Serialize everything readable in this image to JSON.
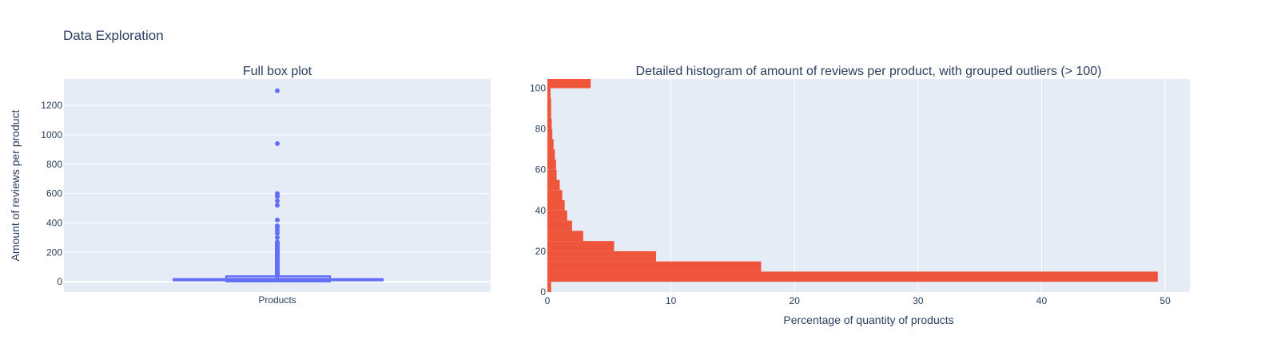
{
  "page": {
    "title": "Data Exploration"
  },
  "colors": {
    "box": "#636efa",
    "hist": "#ef553b",
    "plot_bg": "#e5ecf6",
    "grid": "#ffffff",
    "text": "#2a3f5f"
  },
  "chart_data": [
    {
      "type": "box",
      "title": "Full box plot",
      "xlabel": "",
      "ylabel": "Amount of reviews per product",
      "categories": [
        "Products"
      ],
      "ylim": [
        -70,
        1380
      ],
      "yticks": [
        0,
        200,
        400,
        600,
        800,
        1000,
        1200
      ],
      "grid": true,
      "stats": {
        "min": 1,
        "q1": 3,
        "median": 8,
        "q3": 20,
        "upper_fence": 38
      },
      "outliers": [
        1300,
        940,
        600,
        590,
        580,
        550,
        520,
        420,
        380,
        370,
        350,
        330,
        300,
        270,
        260,
        250,
        240,
        230,
        220,
        210,
        200,
        190,
        180,
        170,
        160,
        150,
        140,
        130,
        120,
        110,
        100,
        95,
        90,
        85,
        80,
        75,
        70,
        65,
        60,
        55,
        50,
        45,
        42,
        40
      ]
    },
    {
      "type": "bar",
      "orientation": "horizontal",
      "title": "Detailed histogram of amount of reviews per product, with grouped outliers (> 100)",
      "xlabel": "Percentage of quantity of products",
      "ylabel": "",
      "xlim": [
        0,
        52
      ],
      "ylim": [
        0,
        104.5
      ],
      "xticks": [
        0,
        10,
        20,
        30,
        40,
        50
      ],
      "yticks": [
        0,
        20,
        40,
        60,
        80,
        100
      ],
      "grid": true,
      "bars": [
        {
          "y0": 0,
          "y1": 5,
          "x": 0.3
        },
        {
          "y0": 5,
          "y1": 10,
          "x": 49.4
        },
        {
          "y0": 10,
          "y1": 15,
          "x": 17.3
        },
        {
          "y0": 15,
          "y1": 20,
          "x": 8.8
        },
        {
          "y0": 20,
          "y1": 25,
          "x": 5.4
        },
        {
          "y0": 25,
          "y1": 30,
          "x": 2.9
        },
        {
          "y0": 30,
          "y1": 35,
          "x": 2.0
        },
        {
          "y0": 35,
          "y1": 40,
          "x": 1.6
        },
        {
          "y0": 40,
          "y1": 45,
          "x": 1.4
        },
        {
          "y0": 45,
          "y1": 50,
          "x": 1.2
        },
        {
          "y0": 50,
          "y1": 55,
          "x": 1.0
        },
        {
          "y0": 55,
          "y1": 60,
          "x": 0.75
        },
        {
          "y0": 60,
          "y1": 65,
          "x": 0.7
        },
        {
          "y0": 65,
          "y1": 70,
          "x": 0.6
        },
        {
          "y0": 70,
          "y1": 75,
          "x": 0.5
        },
        {
          "y0": 75,
          "y1": 80,
          "x": 0.4
        },
        {
          "y0": 80,
          "y1": 85,
          "x": 0.35
        },
        {
          "y0": 85,
          "y1": 90,
          "x": 0.3
        },
        {
          "y0": 90,
          "y1": 95,
          "x": 0.3
        },
        {
          "y0": 95,
          "y1": 100,
          "x": 0.25
        },
        {
          "y0": 100,
          "y1": 105,
          "x": 3.5
        }
      ]
    }
  ]
}
